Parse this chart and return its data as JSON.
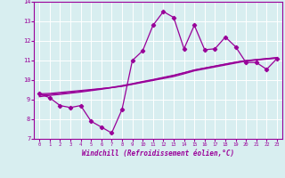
{
  "xlabel": "Windchill (Refroidissement éolien,°C)",
  "x_values": [
    0,
    1,
    2,
    3,
    4,
    5,
    6,
    7,
    8,
    9,
    10,
    11,
    12,
    13,
    14,
    15,
    16,
    17,
    18,
    19,
    20,
    21,
    22,
    23
  ],
  "main_line": [
    9.3,
    9.1,
    8.7,
    8.6,
    8.7,
    7.9,
    7.6,
    7.3,
    8.5,
    11.0,
    11.5,
    12.8,
    13.5,
    13.2,
    11.6,
    12.8,
    11.55,
    11.6,
    12.2,
    11.7,
    10.9,
    10.9,
    10.55,
    11.1
  ],
  "reg_line1": [
    9.3,
    9.32,
    9.37,
    9.42,
    9.47,
    9.52,
    9.57,
    9.62,
    9.68,
    9.78,
    9.88,
    9.98,
    10.08,
    10.18,
    10.32,
    10.47,
    10.57,
    10.67,
    10.77,
    10.87,
    10.97,
    11.02,
    11.07,
    11.12
  ],
  "reg_line2": [
    9.22,
    9.27,
    9.32,
    9.37,
    9.43,
    9.49,
    9.56,
    9.63,
    9.72,
    9.82,
    9.93,
    10.03,
    10.14,
    10.25,
    10.38,
    10.52,
    10.62,
    10.72,
    10.82,
    10.92,
    11.0,
    11.05,
    11.1,
    11.15
  ],
  "reg_line3": [
    9.15,
    9.22,
    9.27,
    9.33,
    9.39,
    9.46,
    9.53,
    9.61,
    9.7,
    9.8,
    9.91,
    10.01,
    10.12,
    10.23,
    10.37,
    10.51,
    10.61,
    10.71,
    10.81,
    10.91,
    10.99,
    11.04,
    11.09,
    11.14
  ],
  "line_color": "#990099",
  "bg_color": "#d8eef0",
  "grid_color": "#b0d4d8",
  "ylim": [
    7,
    14
  ],
  "xlim": [
    -0.5,
    23.5
  ],
  "yticks": [
    7,
    8,
    9,
    10,
    11,
    12,
    13,
    14
  ],
  "xticks": [
    0,
    1,
    2,
    3,
    4,
    5,
    6,
    7,
    8,
    9,
    10,
    11,
    12,
    13,
    14,
    15,
    16,
    17,
    18,
    19,
    20,
    21,
    22,
    23
  ]
}
